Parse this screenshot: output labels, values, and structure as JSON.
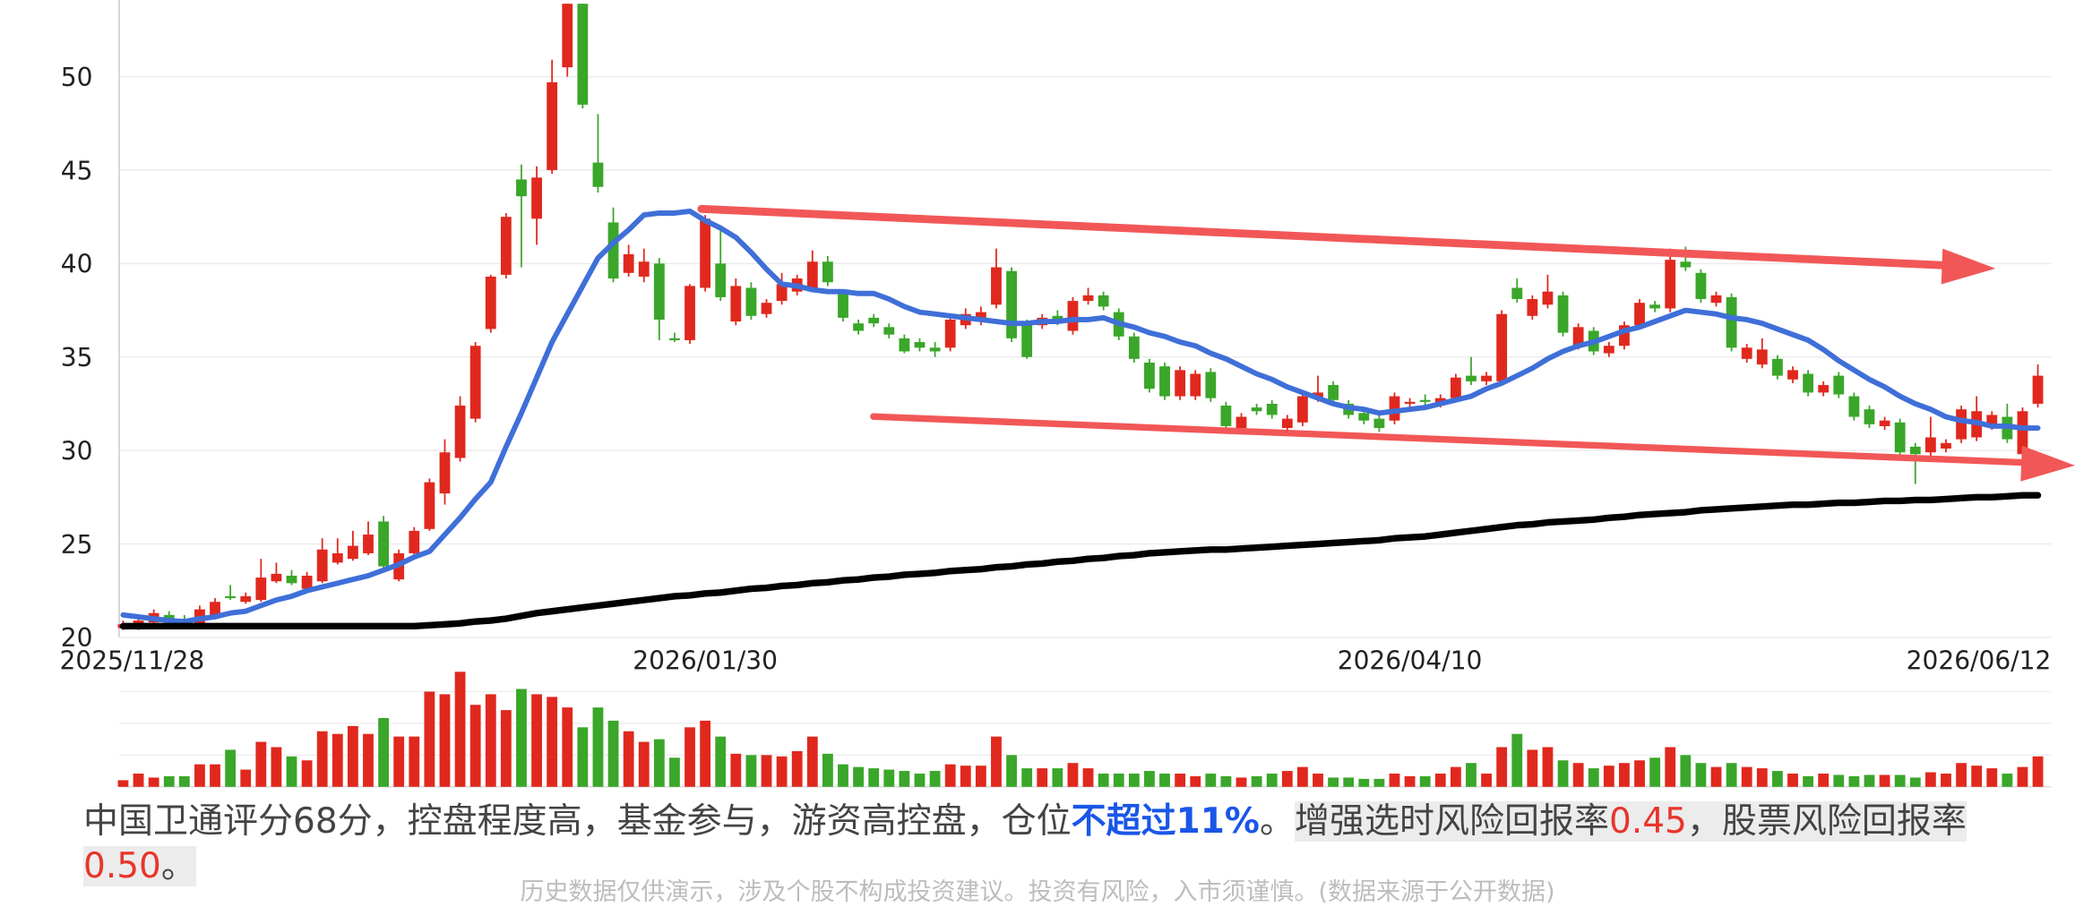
{
  "chart_data": {
    "type": "candlestick",
    "categories": [
      "2025/11/28",
      null,
      null,
      null,
      null,
      null,
      null,
      null,
      null,
      null,
      null,
      null,
      null,
      null,
      null,
      null,
      null,
      null,
      null,
      null,
      null,
      null,
      null,
      null,
      null,
      null,
      null,
      null,
      null,
      null,
      null,
      null,
      null,
      null,
      null,
      null,
      null,
      null,
      "2026/01/30",
      null,
      null,
      null,
      null,
      null,
      null,
      null,
      null,
      null,
      null,
      null,
      null,
      null,
      null,
      null,
      null,
      null,
      null,
      null,
      null,
      null,
      null,
      null,
      null,
      null,
      null,
      null,
      null,
      null,
      null,
      null,
      null,
      null,
      null,
      null,
      null,
      null,
      null,
      null,
      null,
      null,
      null,
      null,
      null,
      null,
      "2026/04/10",
      null,
      null,
      null,
      null,
      null,
      null,
      null,
      null,
      null,
      null,
      null,
      null,
      null,
      null,
      null,
      null,
      null,
      null,
      null,
      null,
      null,
      null,
      null,
      null,
      null,
      null,
      null,
      null,
      null,
      null,
      null,
      null,
      null,
      null,
      null,
      null,
      null,
      null,
      null,
      null,
      "2026/06/12"
    ],
    "candles": [
      [
        20.5,
        20.9,
        20.4,
        20.7
      ],
      [
        20.5,
        21.0,
        20.4,
        20.9
      ],
      [
        20.8,
        21.5,
        20.7,
        21.3
      ],
      [
        21.2,
        21.4,
        20.8,
        20.9
      ],
      [
        21.0,
        21.2,
        20.6,
        20.7
      ],
      [
        20.6,
        21.7,
        20.5,
        21.5
      ],
      [
        21.2,
        22.1,
        21.1,
        21.9
      ],
      [
        22.2,
        22.8,
        22.0,
        22.1
      ],
      [
        21.9,
        22.4,
        21.8,
        22.2
      ],
      [
        22.0,
        24.2,
        21.9,
        23.2
      ],
      [
        23.0,
        24.0,
        22.9,
        23.4
      ],
      [
        23.3,
        23.6,
        22.8,
        22.9
      ],
      [
        22.6,
        23.5,
        22.5,
        23.3
      ],
      [
        23.0,
        25.3,
        22.9,
        24.7
      ],
      [
        24.0,
        25.3,
        23.9,
        24.5
      ],
      [
        24.2,
        25.7,
        24.1,
        24.9
      ],
      [
        24.5,
        26.2,
        24.4,
        25.5
      ],
      [
        26.2,
        26.5,
        23.6,
        23.8
      ],
      [
        23.1,
        24.7,
        23.0,
        24.5
      ],
      [
        24.5,
        25.9,
        24.4,
        25.7
      ],
      [
        25.8,
        28.5,
        25.7,
        28.3
      ],
      [
        27.7,
        30.6,
        27.1,
        29.9
      ],
      [
        29.6,
        32.9,
        29.4,
        32.4
      ],
      [
        31.7,
        35.8,
        31.5,
        35.6
      ],
      [
        36.5,
        39.4,
        36.3,
        39.3
      ],
      [
        39.4,
        42.7,
        39.2,
        42.5
      ],
      [
        44.5,
        45.3,
        39.8,
        43.6
      ],
      [
        42.4,
        45.2,
        41.0,
        44.6
      ],
      [
        45.0,
        50.9,
        44.8,
        49.7
      ],
      [
        50.5,
        53.9,
        50.0,
        53.9
      ],
      [
        53.9,
        53.9,
        48.3,
        48.5
      ],
      [
        45.4,
        48.0,
        43.8,
        44.1
      ],
      [
        42.2,
        43.0,
        39.0,
        39.2
      ],
      [
        39.5,
        41.0,
        39.3,
        40.5
      ],
      [
        39.3,
        40.8,
        39.0,
        40.1
      ],
      [
        40.0,
        40.3,
        35.9,
        37.0
      ],
      [
        36.0,
        36.3,
        35.8,
        35.9
      ],
      [
        35.9,
        38.9,
        35.7,
        38.8
      ],
      [
        38.7,
        42.6,
        38.5,
        42.4
      ],
      [
        40.0,
        41.9,
        38.0,
        38.2
      ],
      [
        36.9,
        39.2,
        36.7,
        38.8
      ],
      [
        38.7,
        39.0,
        37.0,
        37.2
      ],
      [
        37.3,
        38.1,
        37.1,
        37.9
      ],
      [
        38.0,
        39.5,
        37.8,
        38.9
      ],
      [
        38.5,
        39.4,
        38.3,
        39.2
      ],
      [
        38.7,
        40.7,
        38.5,
        40.1
      ],
      [
        40.1,
        40.4,
        38.8,
        39.0
      ],
      [
        38.4,
        38.6,
        36.9,
        37.1
      ],
      [
        36.8,
        37.0,
        36.2,
        36.4
      ],
      [
        37.1,
        37.3,
        36.6,
        36.8
      ],
      [
        36.6,
        36.8,
        36.0,
        36.2
      ],
      [
        36.0,
        36.2,
        35.2,
        35.3
      ],
      [
        35.8,
        36.0,
        35.3,
        35.5
      ],
      [
        35.5,
        35.8,
        35.0,
        35.3
      ],
      [
        35.5,
        37.2,
        35.3,
        37.0
      ],
      [
        36.7,
        37.6,
        36.5,
        37.3
      ],
      [
        36.9,
        37.7,
        36.7,
        37.4
      ],
      [
        37.8,
        40.8,
        37.6,
        39.8
      ],
      [
        39.6,
        39.8,
        35.8,
        36.0
      ],
      [
        36.7,
        37.0,
        34.9,
        35.0
      ],
      [
        36.7,
        37.3,
        36.5,
        37.1
      ],
      [
        37.2,
        37.5,
        36.7,
        36.9
      ],
      [
        36.4,
        38.2,
        36.2,
        38.0
      ],
      [
        38.0,
        38.7,
        37.8,
        38.3
      ],
      [
        38.3,
        38.5,
        37.5,
        37.7
      ],
      [
        37.4,
        37.6,
        35.9,
        36.1
      ],
      [
        36.1,
        36.3,
        34.7,
        34.9
      ],
      [
        34.7,
        34.9,
        33.1,
        33.3
      ],
      [
        34.5,
        34.7,
        32.7,
        32.9
      ],
      [
        32.9,
        34.5,
        32.7,
        34.3
      ],
      [
        32.9,
        34.3,
        32.7,
        34.1
      ],
      [
        34.2,
        34.4,
        32.6,
        32.8
      ],
      [
        32.4,
        32.6,
        30.9,
        31.3
      ],
      [
        31.2,
        32.0,
        31.0,
        31.8
      ],
      [
        32.3,
        32.5,
        31.9,
        32.1
      ],
      [
        32.5,
        32.7,
        31.7,
        31.9
      ],
      [
        31.2,
        31.9,
        31.0,
        31.7
      ],
      [
        31.5,
        33.1,
        31.3,
        32.9
      ],
      [
        32.8,
        34.0,
        32.6,
        33.1
      ],
      [
        33.5,
        33.7,
        32.5,
        32.7
      ],
      [
        32.5,
        32.7,
        31.7,
        31.9
      ],
      [
        32.0,
        32.2,
        31.4,
        31.6
      ],
      [
        31.7,
        31.9,
        31.0,
        31.2
      ],
      [
        31.6,
        33.1,
        31.4,
        32.9
      ],
      [
        32.5,
        32.8,
        32.3,
        32.6
      ],
      [
        32.7,
        33.0,
        32.4,
        32.6
      ],
      [
        32.5,
        33.0,
        32.3,
        32.8
      ],
      [
        32.8,
        34.1,
        32.6,
        33.9
      ],
      [
        34.0,
        35.0,
        33.5,
        33.7
      ],
      [
        33.7,
        34.2,
        33.5,
        34.0
      ],
      [
        33.7,
        37.5,
        33.5,
        37.3
      ],
      [
        38.7,
        39.2,
        37.9,
        38.1
      ],
      [
        37.2,
        38.3,
        37.0,
        38.1
      ],
      [
        37.8,
        39.4,
        37.6,
        38.5
      ],
      [
        38.3,
        38.5,
        36.1,
        36.3
      ],
      [
        35.6,
        36.8,
        35.4,
        36.6
      ],
      [
        36.4,
        36.6,
        35.1,
        35.3
      ],
      [
        35.2,
        35.8,
        35.0,
        35.6
      ],
      [
        35.6,
        36.9,
        35.4,
        36.7
      ],
      [
        36.7,
        38.1,
        36.5,
        37.9
      ],
      [
        37.8,
        38.0,
        37.4,
        37.6
      ],
      [
        37.6,
        40.8,
        37.4,
        40.2
      ],
      [
        40.1,
        40.9,
        39.6,
        39.8
      ],
      [
        39.5,
        39.7,
        37.9,
        38.1
      ],
      [
        37.9,
        38.5,
        37.7,
        38.3
      ],
      [
        38.2,
        38.4,
        35.3,
        35.5
      ],
      [
        34.9,
        35.7,
        34.7,
        35.5
      ],
      [
        34.6,
        36.0,
        34.4,
        35.4
      ],
      [
        34.9,
        35.1,
        33.8,
        34.0
      ],
      [
        33.8,
        34.5,
        33.6,
        34.3
      ],
      [
        34.1,
        34.3,
        32.9,
        33.1
      ],
      [
        33.1,
        33.7,
        32.9,
        33.5
      ],
      [
        34.0,
        34.2,
        32.8,
        33.0
      ],
      [
        32.9,
        33.1,
        31.6,
        31.8
      ],
      [
        32.2,
        32.4,
        31.2,
        31.4
      ],
      [
        31.3,
        31.8,
        31.1,
        31.6
      ],
      [
        31.5,
        31.7,
        29.7,
        29.9
      ],
      [
        30.2,
        30.4,
        28.2,
        29.8
      ],
      [
        29.9,
        31.8,
        29.7,
        30.7
      ],
      [
        30.1,
        30.6,
        29.9,
        30.4
      ],
      [
        30.6,
        32.4,
        30.4,
        32.2
      ],
      [
        30.7,
        32.9,
        30.5,
        32.1
      ],
      [
        31.3,
        32.1,
        31.1,
        31.9
      ],
      [
        31.8,
        32.5,
        30.4,
        30.6
      ],
      [
        29.8,
        32.3,
        29.6,
        32.1
      ],
      [
        32.5,
        34.6,
        32.3,
        34.0
      ]
    ],
    "up_color": "#e0281e",
    "down_color": "#3aa62a",
    "lines": [
      {
        "color": "#3f6fd8",
        "values": [
          21.2,
          21.1,
          21.0,
          20.9,
          20.85,
          21.0,
          21.1,
          21.3,
          21.4,
          21.7,
          22.0,
          22.2,
          22.5,
          22.7,
          22.9,
          23.1,
          23.3,
          23.6,
          23.9,
          24.3,
          24.6,
          25.5,
          26.4,
          27.4,
          28.3,
          30.2,
          32.0,
          33.9,
          35.8,
          37.3,
          38.8,
          40.3,
          41.1,
          41.8,
          42.6,
          42.7,
          42.7,
          42.8,
          42.3,
          41.9,
          41.4,
          40.6,
          39.7,
          38.9,
          38.8,
          38.6,
          38.5,
          38.5,
          38.4,
          38.4,
          38.1,
          37.7,
          37.4,
          37.3,
          37.2,
          37.1,
          37.0,
          36.9,
          36.8,
          36.8,
          36.9,
          36.9,
          37.0,
          37.0,
          37.1,
          36.8,
          36.6,
          36.3,
          36.1,
          35.8,
          35.6,
          35.2,
          34.9,
          34.5,
          34.1,
          33.8,
          33.4,
          33.1,
          32.8,
          32.5,
          32.3,
          32.2,
          32.0,
          32.1,
          32.2,
          32.3,
          32.5,
          32.7,
          32.9,
          33.3,
          33.6,
          34.0,
          34.4,
          34.9,
          35.3,
          35.6,
          35.8,
          36.1,
          36.4,
          36.6,
          36.9,
          37.2,
          37.5,
          37.4,
          37.3,
          37.1,
          37.0,
          36.8,
          36.5,
          36.2,
          35.9,
          35.4,
          34.8,
          34.3,
          33.8,
          33.4,
          32.9,
          32.5,
          32.2,
          31.8,
          31.6,
          31.5,
          31.3,
          31.3,
          31.2,
          31.2
        ]
      },
      {
        "color": "#000000",
        "values": [
          20.6,
          20.6,
          20.6,
          20.6,
          20.6,
          20.6,
          20.6,
          20.6,
          20.6,
          20.6,
          20.6,
          20.6,
          20.6,
          20.6,
          20.6,
          20.6,
          20.6,
          20.6,
          20.6,
          20.6,
          20.65,
          20.7,
          20.75,
          20.85,
          20.9,
          21.0,
          21.15,
          21.3,
          21.4,
          21.5,
          21.6,
          21.7,
          21.8,
          21.9,
          22.0,
          22.1,
          22.2,
          22.25,
          22.35,
          22.4,
          22.5,
          22.6,
          22.65,
          22.75,
          22.8,
          22.9,
          22.95,
          23.05,
          23.1,
          23.2,
          23.25,
          23.35,
          23.4,
          23.45,
          23.55,
          23.6,
          23.65,
          23.75,
          23.8,
          23.9,
          23.95,
          24.05,
          24.1,
          24.2,
          24.25,
          24.35,
          24.4,
          24.5,
          24.55,
          24.6,
          24.65,
          24.7,
          24.7,
          24.75,
          24.8,
          24.85,
          24.9,
          24.95,
          25.0,
          25.05,
          25.1,
          25.15,
          25.2,
          25.3,
          25.35,
          25.4,
          25.5,
          25.6,
          25.7,
          25.8,
          25.9,
          26.0,
          26.05,
          26.15,
          26.2,
          26.25,
          26.3,
          26.4,
          26.45,
          26.55,
          26.6,
          26.65,
          26.7,
          26.8,
          26.85,
          26.9,
          26.95,
          27.0,
          27.05,
          27.1,
          27.1,
          27.15,
          27.2,
          27.2,
          27.25,
          27.3,
          27.3,
          27.35,
          27.35,
          27.4,
          27.45,
          27.5,
          27.5,
          27.55,
          27.6,
          27.6
        ]
      }
    ],
    "volume": [
      5,
      10,
      7,
      8,
      8,
      17,
      17,
      28,
      13,
      34,
      30,
      23,
      20,
      42,
      40,
      46,
      40,
      52,
      38,
      38,
      72,
      70,
      87,
      62,
      70,
      58,
      74,
      70,
      68,
      60,
      45,
      60,
      50,
      42,
      34,
      36,
      22,
      45,
      50,
      38,
      25,
      24,
      24,
      23,
      27,
      38,
      25,
      17,
      15,
      14,
      13,
      12,
      10,
      12,
      17,
      16,
      16,
      38,
      24,
      14,
      14,
      14,
      18,
      14,
      10,
      10,
      10,
      12,
      10,
      10,
      8,
      10,
      8,
      7,
      8,
      10,
      12,
      15,
      10,
      7,
      7,
      6,
      6,
      10,
      8,
      8,
      10,
      15,
      18,
      10,
      30,
      40,
      28,
      30,
      20,
      18,
      14,
      16,
      18,
      20,
      22,
      30,
      24,
      18,
      15,
      18,
      15,
      14,
      12,
      10,
      8,
      10,
      9,
      8,
      9,
      9,
      9,
      7,
      11,
      10,
      18,
      16,
      14,
      10,
      15,
      23
    ],
    "ylim": [
      20,
      54.1
    ],
    "yticks": [
      20,
      25,
      30,
      35,
      40,
      45,
      50
    ],
    "grid": true
  },
  "summary": {
    "text1": "中国卫通评分68分，控盘程度高，基金参与，游资高控盘，仓位",
    "position_limit": "不超过11%",
    "text2": "。",
    "text3": "增强选时风险回报率",
    "timing_ratio": "0.45",
    "text4": "，股票风险回报率",
    "stock_ratio": "0.50",
    "text5": "。"
  },
  "disclaimer": "历史数据仅供演示，涉及个股不构成投资建议。投资有风险，入市须谨慎。(数据来源于公开数据)"
}
